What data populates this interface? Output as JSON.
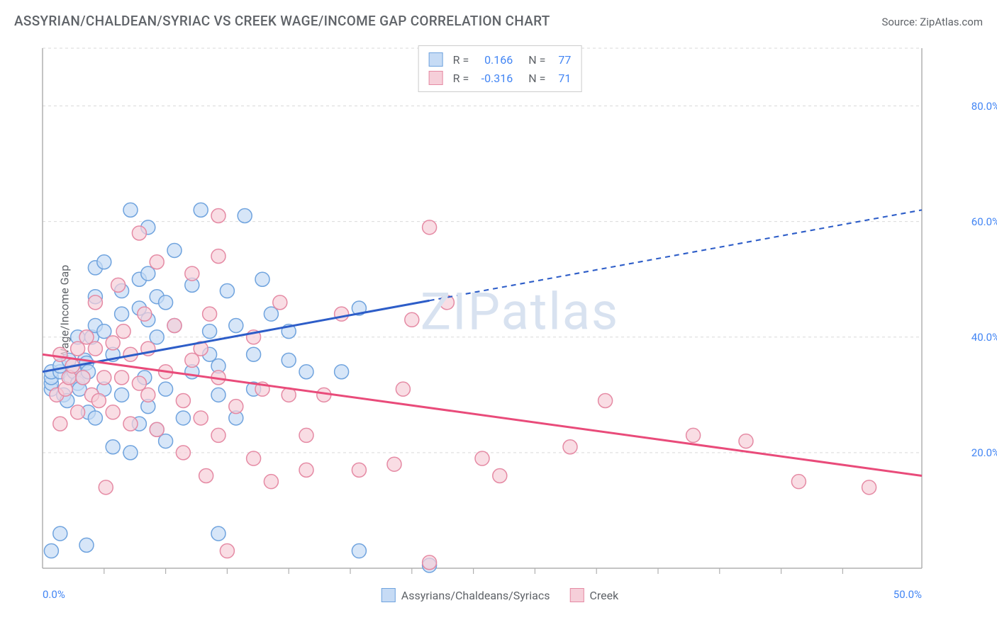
{
  "title": "ASSYRIAN/CHALDEAN/SYRIAC VS CREEK WAGE/INCOME GAP CORRELATION CHART",
  "source": "Source: ZipAtlas.com",
  "watermark": "ZIPatlas",
  "chart": {
    "type": "scatter",
    "y_axis_label": "Wage/Income Gap",
    "xlim": [
      0,
      50
    ],
    "ylim": [
      0,
      90
    ],
    "x_ticks": [
      0,
      50
    ],
    "x_tick_labels": [
      "0.0%",
      "50.0%"
    ],
    "y_ticks": [
      20,
      40,
      60,
      80
    ],
    "y_tick_labels": [
      "20.0%",
      "40.0%",
      "60.0%",
      "80.0%"
    ],
    "background_color": "#ffffff",
    "grid_color": "#d9d9d9",
    "axis_color": "#b0b0b0",
    "tick_color": "#b0b0b0",
    "x_minor_ticks": [
      3.5,
      7,
      10.5,
      14,
      17.5,
      21,
      24.5,
      28,
      31.5,
      35,
      38.5,
      42,
      45.5
    ],
    "series": [
      {
        "name": "Assyrians/Chaldeans/Syriacs",
        "fill": "#c6dbf5",
        "stroke": "#6fa3de",
        "marker_radius": 10,
        "fill_opacity": 0.7,
        "r_value": "0.166",
        "n_value": "77",
        "trend": {
          "color": "#2d5dc8",
          "width": 3,
          "y_at_x0": 34,
          "y_at_x50": 62,
          "solid_until_x": 22
        },
        "points": [
          [
            0.5,
            3
          ],
          [
            2.5,
            4
          ],
          [
            18,
            3
          ],
          [
            22,
            0.5
          ],
          [
            1,
            6
          ],
          [
            10,
            6
          ],
          [
            0.5,
            31
          ],
          [
            0.5,
            32
          ],
          [
            0.5,
            33
          ],
          [
            0.5,
            34
          ],
          [
            1,
            34
          ],
          [
            1,
            35
          ],
          [
            1.2,
            30
          ],
          [
            1.4,
            29
          ],
          [
            1.5,
            36
          ],
          [
            1.6,
            33
          ],
          [
            1.8,
            34
          ],
          [
            2,
            32
          ],
          [
            2,
            40
          ],
          [
            2.1,
            31
          ],
          [
            2.3,
            33
          ],
          [
            2.4,
            36
          ],
          [
            2.5,
            35.5
          ],
          [
            2.6,
            27
          ],
          [
            2.6,
            34
          ],
          [
            2.8,
            40
          ],
          [
            3,
            26
          ],
          [
            3,
            42
          ],
          [
            3,
            47
          ],
          [
            3,
            52
          ],
          [
            3.5,
            31
          ],
          [
            3.5,
            41
          ],
          [
            3.5,
            53
          ],
          [
            4,
            21
          ],
          [
            4,
            37
          ],
          [
            4.5,
            30
          ],
          [
            4.5,
            44
          ],
          [
            4.5,
            48
          ],
          [
            5,
            20
          ],
          [
            5,
            62
          ],
          [
            5.5,
            25
          ],
          [
            5.5,
            45
          ],
          [
            5.5,
            50
          ],
          [
            5.8,
            33
          ],
          [
            6,
            28
          ],
          [
            6,
            43
          ],
          [
            6,
            51
          ],
          [
            6,
            59
          ],
          [
            6.5,
            24
          ],
          [
            6.5,
            40
          ],
          [
            6.5,
            47
          ],
          [
            7,
            22
          ],
          [
            7,
            31
          ],
          [
            7,
            46
          ],
          [
            7.5,
            42
          ],
          [
            7.5,
            55
          ],
          [
            8,
            26
          ],
          [
            8.5,
            34
          ],
          [
            8.5,
            49
          ],
          [
            9,
            62
          ],
          [
            9.5,
            37
          ],
          [
            9.5,
            41
          ],
          [
            10,
            30
          ],
          [
            10,
            35
          ],
          [
            10.5,
            48
          ],
          [
            11,
            26
          ],
          [
            11,
            42
          ],
          [
            11.5,
            61
          ],
          [
            12,
            31
          ],
          [
            12,
            37
          ],
          [
            12.5,
            50
          ],
          [
            13,
            44
          ],
          [
            14,
            36
          ],
          [
            14,
            41
          ],
          [
            15,
            34
          ],
          [
            17,
            34
          ],
          [
            18,
            45
          ]
        ]
      },
      {
        "name": "Creek",
        "fill": "#f6cfd9",
        "stroke": "#e58aa4",
        "marker_radius": 10,
        "fill_opacity": 0.7,
        "r_value": "-0.316",
        "n_value": "71",
        "trend": {
          "color": "#e94b7a",
          "width": 3,
          "y_at_x0": 37,
          "y_at_x50": 16,
          "solid_until_x": 50
        },
        "points": [
          [
            0.8,
            30
          ],
          [
            1,
            25
          ],
          [
            1,
            37
          ],
          [
            1.3,
            31
          ],
          [
            1.5,
            33
          ],
          [
            1.7,
            35
          ],
          [
            2,
            27
          ],
          [
            2,
            38
          ],
          [
            2.3,
            33
          ],
          [
            2.5,
            40
          ],
          [
            2.8,
            30
          ],
          [
            3,
            38
          ],
          [
            3,
            46
          ],
          [
            3.2,
            29
          ],
          [
            3.5,
            33
          ],
          [
            3.6,
            14
          ],
          [
            4,
            27
          ],
          [
            4,
            39
          ],
          [
            4.3,
            49
          ],
          [
            4.5,
            33
          ],
          [
            4.6,
            41
          ],
          [
            5,
            25
          ],
          [
            5,
            37
          ],
          [
            5.5,
            32
          ],
          [
            5.5,
            58
          ],
          [
            5.8,
            44
          ],
          [
            6,
            30
          ],
          [
            6,
            38
          ],
          [
            6.5,
            24
          ],
          [
            6.5,
            53
          ],
          [
            7,
            34
          ],
          [
            7.5,
            42
          ],
          [
            8,
            20
          ],
          [
            8,
            29
          ],
          [
            8.5,
            36
          ],
          [
            8.5,
            51
          ],
          [
            9,
            26
          ],
          [
            9,
            38
          ],
          [
            9.3,
            16
          ],
          [
            9.5,
            44
          ],
          [
            10,
            23
          ],
          [
            10,
            33
          ],
          [
            10,
            54
          ],
          [
            10,
            61
          ],
          [
            10.5,
            3
          ],
          [
            11,
            28
          ],
          [
            12,
            19
          ],
          [
            12,
            40
          ],
          [
            12.5,
            31
          ],
          [
            13,
            15
          ],
          [
            13.5,
            46
          ],
          [
            14,
            30
          ],
          [
            15,
            23
          ],
          [
            15,
            17
          ],
          [
            16,
            30
          ],
          [
            17,
            44
          ],
          [
            18,
            17
          ],
          [
            20,
            18
          ],
          [
            20.5,
            31
          ],
          [
            21,
            43
          ],
          [
            22,
            59
          ],
          [
            22,
            1
          ],
          [
            23,
            46
          ],
          [
            25,
            19
          ],
          [
            26,
            16
          ],
          [
            30,
            21
          ],
          [
            32,
            29
          ],
          [
            37,
            23
          ],
          [
            40,
            22
          ],
          [
            43,
            15
          ],
          [
            47,
            14
          ]
        ]
      }
    ]
  },
  "legend_bottom": [
    {
      "label": "Assyrians/Chaldeans/Syriacs",
      "fill": "#c6dbf5",
      "stroke": "#6fa3de"
    },
    {
      "label": "Creek",
      "fill": "#f6cfd9",
      "stroke": "#e58aa4"
    }
  ]
}
